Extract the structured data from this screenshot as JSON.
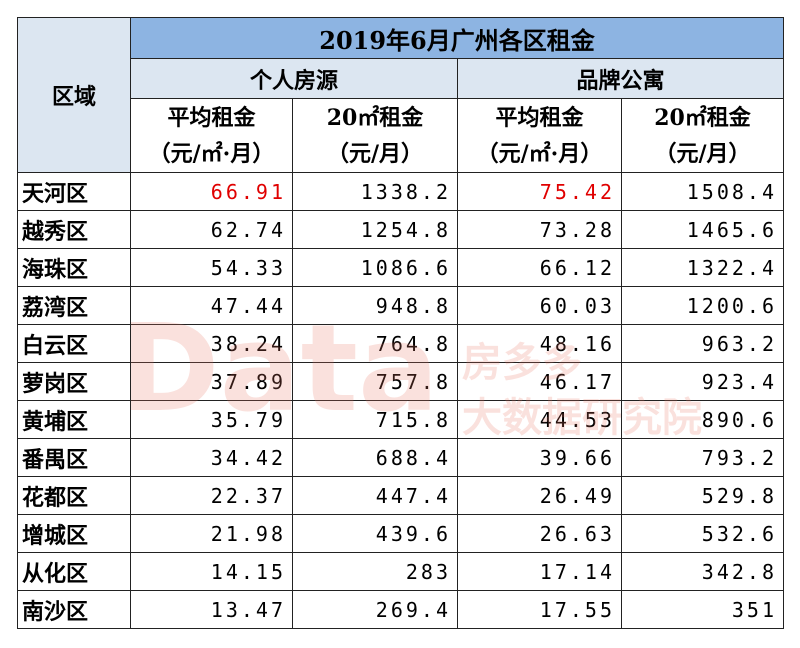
{
  "table": {
    "title": "2019年6月广州各区租金",
    "region_header": "区域",
    "groups": [
      "个人房源",
      "品牌公寓"
    ],
    "columns": [
      [
        "平均租金",
        "（元/㎡·月）"
      ],
      [
        "20㎡租金",
        "（元/月）"
      ],
      [
        "平均租金",
        "（元/㎡·月）"
      ],
      [
        "20㎡租金",
        "（元/月）"
      ]
    ],
    "rows": [
      [
        "天河区",
        66.91,
        1338.2,
        75.42,
        1508.4
      ],
      [
        "越秀区",
        62.74,
        1254.8,
        73.28,
        1465.6
      ],
      [
        "海珠区",
        54.33,
        1086.6,
        66.12,
        1322.4
      ],
      [
        "荔湾区",
        47.44,
        948.8,
        60.03,
        1200.6
      ],
      [
        "白云区",
        38.24,
        764.8,
        48.16,
        963.2
      ],
      [
        "萝岗区",
        37.89,
        757.8,
        46.17,
        923.4
      ],
      [
        "黄埔区",
        35.79,
        715.8,
        44.53,
        890.6
      ],
      [
        "番禺区",
        34.42,
        688.4,
        39.66,
        793.2
      ],
      [
        "花都区",
        22.37,
        447.4,
        26.49,
        529.8
      ],
      [
        "增城区",
        21.98,
        439.6,
        26.63,
        532.6
      ],
      [
        "从化区",
        14.15,
        283,
        17.14,
        342.8
      ],
      [
        "南沙区",
        13.47,
        269.4,
        17.55,
        351
      ]
    ]
  },
  "watermark": {
    "logo": "Data",
    "line1": "房多多",
    "line2": "大数据研究院"
  }
}
